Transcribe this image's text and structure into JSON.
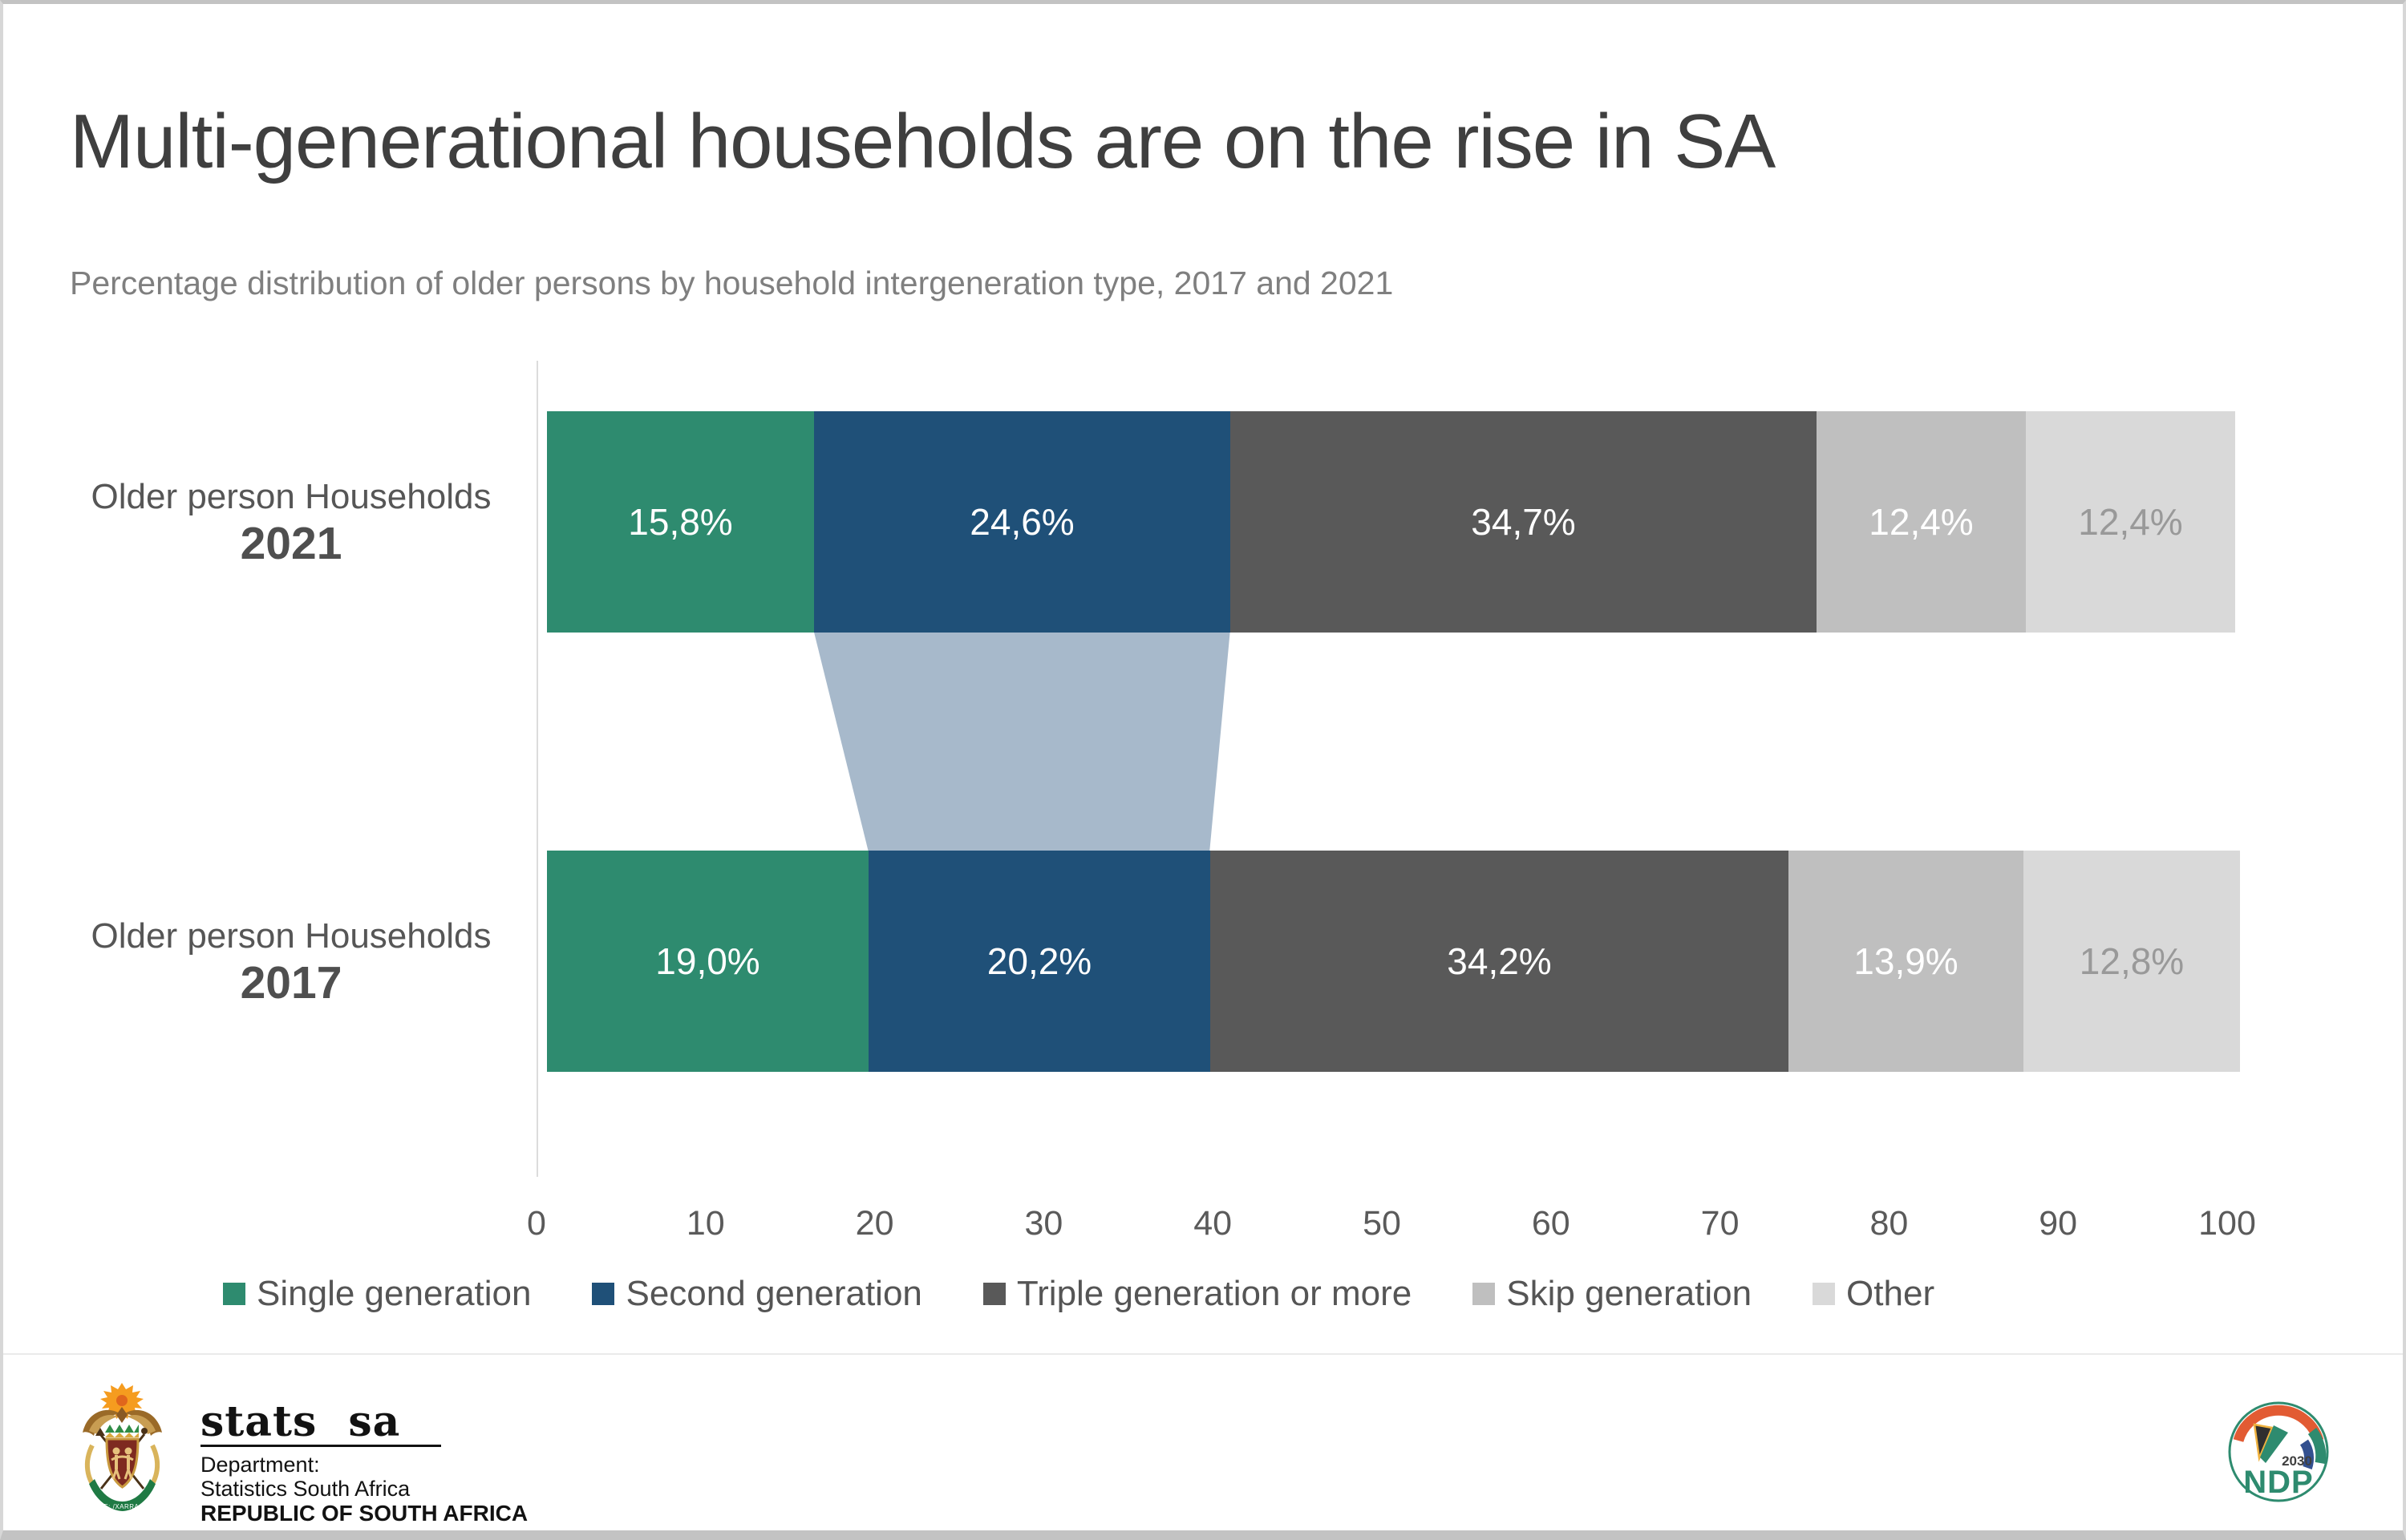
{
  "page": {
    "title": "Multi-generational households are on the rise in SA",
    "subtitle": "Percentage distribution of older persons by household intergeneration type, 2017 and 2021"
  },
  "chart_data": {
    "type": "bar",
    "orientation": "horizontal",
    "stacked": true,
    "title": "Multi-generational households are on the rise in SA",
    "subtitle": "Percentage distribution of older persons by household intergeneration type, 2017 and 2021",
    "categories": [
      "Older person Households 2021",
      "Older person Households 2017"
    ],
    "series": [
      {
        "name": "Single generation",
        "color": "#2E8B6F",
        "label_color": "#FFFFFF",
        "values": [
          15.8,
          19.0
        ]
      },
      {
        "name": "Second generation",
        "color": "#1F5078",
        "label_color": "#FFFFFF",
        "values": [
          24.6,
          20.2
        ]
      },
      {
        "name": "Triple generation or more",
        "color": "#595959",
        "label_color": "#FFFFFF",
        "values": [
          34.7,
          34.2
        ]
      },
      {
        "name": "Skip generation",
        "color": "#BFBFBF",
        "label_color": "#FFFFFF",
        "values": [
          12.4,
          13.9
        ]
      },
      {
        "name": "Other",
        "color": "#D9D9D9",
        "label_color": "#999999",
        "values": [
          12.4,
          12.8
        ]
      }
    ],
    "data_labels": [
      [
        "15,8%",
        "24,6%",
        "34,7%",
        "12,4%",
        "12,4%"
      ],
      [
        "19,0%",
        "20,2%",
        "34,2%",
        "13,9%",
        "12,8%"
      ]
    ],
    "x_axis": {
      "min": 0,
      "max": 100,
      "tick_interval": 10,
      "ticks": [
        "0",
        "10",
        "20",
        "30",
        "40",
        "50",
        "60",
        "70",
        "80",
        "90",
        "100"
      ]
    },
    "legend_position": "bottom",
    "grid": false,
    "connector": {
      "between_series": "Second generation",
      "color": "#A7B9CB"
    }
  },
  "rows": [
    {
      "label": "Older person Households",
      "year": "2021"
    },
    {
      "label": "Older person Households",
      "year": "2017"
    }
  ],
  "footer": {
    "stats_sa": {
      "wordmark": "stats sa",
      "dept_line1": "Department:",
      "dept_line2": "Statistics South Africa",
      "dept_line3": "REPUBLIC OF SOUTH AFRICA",
      "motto": "IKE E: /XARRA //KE"
    },
    "ndp": {
      "label": "NDP",
      "year": "2030",
      "green": "#2E8B6F"
    }
  },
  "colors": {
    "title_text": "#3F3F3F",
    "subtitle_text": "#7F7F7F",
    "axis_text": "#5A5A5A",
    "axis_line": "#DCDCDC",
    "connector_band": "#A7B9CB",
    "page_border": "#C3C3C3"
  }
}
